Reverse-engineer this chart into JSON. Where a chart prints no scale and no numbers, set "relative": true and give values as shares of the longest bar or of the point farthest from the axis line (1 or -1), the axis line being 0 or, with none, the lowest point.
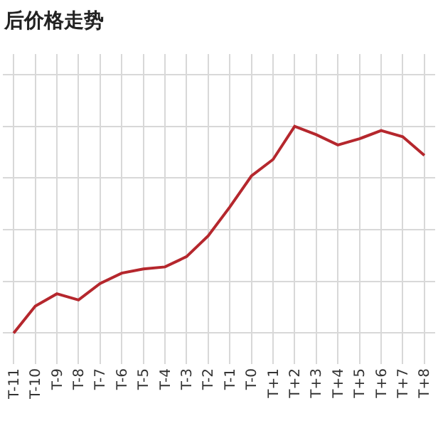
{
  "chart_data": {
    "type": "line",
    "title": "后价格走势",
    "categories": [
      "T-11",
      "T-10",
      "T-9",
      "T-8",
      "T-7",
      "T-6",
      "T-5",
      "T-4",
      "T-3",
      "T-2",
      "T-1",
      "T-0",
      "T+1",
      "T+2",
      "T+3",
      "T+4",
      "T+5",
      "T+6",
      "T+7",
      "T+8"
    ],
    "series": [
      {
        "color": "#b5272d",
        "values": [
          0,
          0.13,
          0.19,
          0.16,
          0.24,
          0.29,
          0.31,
          0.32,
          0.37,
          0.47,
          0.61,
          0.76,
          0.84,
          1.0,
          0.96,
          0.91,
          0.94,
          0.98,
          0.95,
          0.86
        ]
      }
    ],
    "relative": true,
    "grid": true,
    "tick_labels": "x",
    "marker": "none",
    "line_style": "solid",
    "legend": false
  }
}
